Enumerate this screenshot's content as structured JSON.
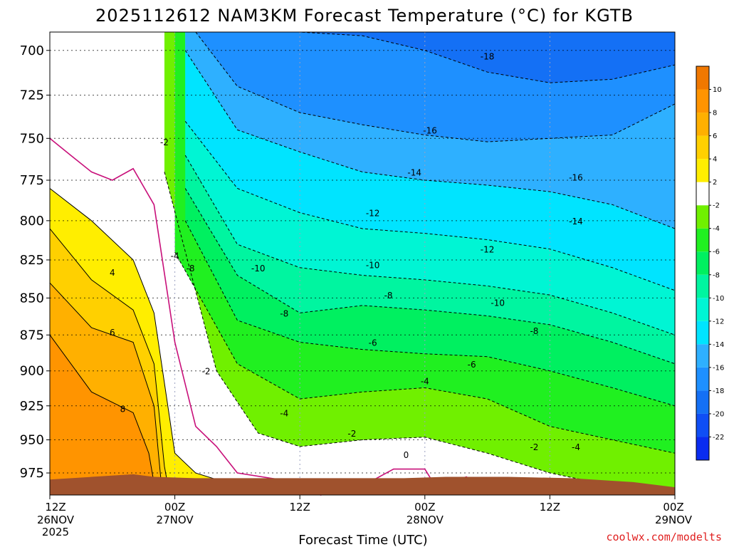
{
  "chart_data": {
    "type": "heatmap",
    "title": "2025112612 NAM3KM Forecast Temperature (°C) for KGTB",
    "xlabel": "Forecast Time (UTC)",
    "ylabel": "",
    "credit": "coolwx.com/modelts",
    "y_axis": {
      "unit": "hPa",
      "ylim": [
        992,
        690
      ],
      "ticks": [
        "700",
        "725",
        "750",
        "775",
        "800",
        "825",
        "850",
        "875",
        "900",
        "925",
        "950",
        "975"
      ]
    },
    "x_axis": {
      "unit": "forecast hours",
      "xlim": [
        0,
        60
      ],
      "ticks": [
        {
          "hour": 0,
          "line1": "12Z",
          "line2": "26NOV",
          "line3": "2025"
        },
        {
          "hour": 12,
          "line1": "00Z",
          "line2": "27NOV",
          "line3": ""
        },
        {
          "hour": 24,
          "line1": "12Z",
          "line2": "",
          "line3": ""
        },
        {
          "hour": 36,
          "line1": "00Z",
          "line2": "28NOV",
          "line3": ""
        },
        {
          "hour": 48,
          "line1": "12Z",
          "line2": "",
          "line3": ""
        },
        {
          "hour": 60,
          "line1": "00Z",
          "line2": "29NOV",
          "line3": ""
        }
      ]
    },
    "colorbar": {
      "levels": [
        -24,
        -22,
        -20,
        -18,
        -16,
        -14,
        -12,
        -10,
        -8,
        -6,
        -4,
        -2,
        2,
        4,
        6,
        8,
        10,
        12
      ],
      "colors": [
        "#0a2cf0",
        "#0f4ef5",
        "#1470f5",
        "#1e90ff",
        "#2eb0ff",
        "#00e4ff",
        "#00f5d4",
        "#00f5a0",
        "#00f060",
        "#20f020",
        "#70f000",
        "#ffffff",
        "#ffee00",
        "#ffd000",
        "#ffb000",
        "#ff9400",
        "#f07800"
      ],
      "tick_labels": [
        "-22",
        "-20",
        "-18",
        "-16",
        "-14",
        "-12",
        "-10",
        "-8",
        "-6",
        "-4",
        "-2",
        "2",
        "4",
        "6",
        "8",
        "10"
      ]
    },
    "bands": [
      {
        "level": -2,
        "color": "#70f000",
        "values": [
          0,
          -0.5,
          -1,
          -1.5,
          -2,
          -2.5,
          -3,
          -3.5,
          -4,
          -4.2,
          -4.4,
          -4.6,
          -4.8,
          -5,
          -5.2,
          -5.4,
          -5.6,
          -5.8,
          -6,
          -6.2,
          -6.4,
          -6.6,
          -6.8,
          -7,
          -7.2,
          -7.4,
          -7.6,
          -7.8,
          -8,
          -8.1,
          -8.2,
          -8.3,
          -8.4,
          -8.5,
          -8.6,
          -8.7,
          -8.8,
          -8.9,
          -9,
          -9.1,
          -9.2,
          -9.3,
          -9.4,
          -9.5,
          -9.6,
          -9.7,
          -9.8,
          -9.9,
          -10,
          -10.1,
          -10.2,
          -10.3,
          -10.4,
          -10.5,
          -10.6,
          -10.7,
          -10.8,
          -10.9,
          -11,
          -11.1,
          -11.2
        ]
      }
    ],
    "series": [
      {
        "name": "-18",
        "level": -18,
        "color": "#1e90ff",
        "x": [
          18,
          24,
          30,
          36,
          42,
          48,
          54,
          60
        ],
        "p": [
          690,
          690,
          692,
          700,
          712,
          718,
          716,
          708
        ]
      },
      {
        "name": "-16",
        "level": -16,
        "color": "#2eb0ff",
        "x": [
          14,
          18,
          24,
          30,
          36,
          42,
          48,
          54,
          60
        ],
        "p": [
          690,
          720,
          735,
          742,
          748,
          752,
          750,
          748,
          730
        ]
      },
      {
        "name": "-14",
        "level": -14,
        "color": "#00e4ff",
        "x": [
          13,
          18,
          24,
          30,
          36,
          42,
          48,
          54,
          60
        ],
        "p": [
          700,
          745,
          758,
          770,
          775,
          778,
          782,
          790,
          805
        ]
      },
      {
        "name": "-12",
        "level": -12,
        "color": "#00f5d4",
        "x": [
          13,
          18,
          24,
          30,
          36,
          42,
          48,
          54,
          60
        ],
        "p": [
          740,
          780,
          795,
          805,
          808,
          812,
          818,
          830,
          845
        ]
      },
      {
        "name": "-10",
        "level": -10,
        "color": "#00f5a0",
        "x": [
          13,
          18,
          24,
          30,
          36,
          42,
          48,
          54,
          60
        ],
        "p": [
          760,
          815,
          830,
          835,
          838,
          842,
          848,
          860,
          875
        ]
      },
      {
        "name": "-8",
        "level": -8,
        "color": "#00f060",
        "x": [
          13,
          18,
          24,
          30,
          36,
          42,
          48,
          54,
          60
        ],
        "p": [
          780,
          835,
          860,
          855,
          858,
          862,
          868,
          880,
          895
        ]
      },
      {
        "name": "-6",
        "level": -6,
        "color": "#20f020",
        "x": [
          13,
          18,
          24,
          30,
          36,
          42,
          48,
          54,
          60
        ],
        "p": [
          800,
          865,
          880,
          885,
          888,
          890,
          900,
          912,
          925
        ]
      },
      {
        "name": "-4",
        "level": -4,
        "color": "#70f000",
        "x": [
          12,
          18,
          24,
          30,
          36,
          42,
          48,
          54,
          60
        ],
        "p": [
          820,
          895,
          920,
          915,
          912,
          920,
          940,
          950,
          960
        ]
      },
      {
        "name": "-2",
        "level": -2,
        "color": "#ffffff",
        "x": [
          11,
          16,
          20,
          24,
          30,
          36,
          42,
          48,
          54,
          60
        ],
        "p": [
          770,
          900,
          945,
          955,
          950,
          948,
          960,
          975,
          985,
          992
        ]
      },
      {
        "name": "2",
        "level": 2,
        "color": "#ffee00",
        "x": [
          0,
          4,
          8,
          10,
          12,
          14,
          16,
          17
        ],
        "p": [
          780,
          800,
          825,
          860,
          960,
          975,
          980,
          992
        ]
      },
      {
        "name": "4",
        "level": 4,
        "color": "#ffd000",
        "x": [
          0,
          4,
          8,
          10,
          11,
          11.5
        ],
        "p": [
          805,
          838,
          858,
          895,
          970,
          992
        ]
      },
      {
        "name": "6",
        "level": 6,
        "color": "#ffb000",
        "x": [
          0,
          4,
          8,
          10,
          10.8
        ],
        "p": [
          840,
          870,
          880,
          925,
          992
        ]
      },
      {
        "name": "8",
        "level": 8,
        "color": "#ff9400",
        "x": [
          0,
          4,
          8,
          9.5,
          10.2
        ],
        "p": [
          875,
          915,
          930,
          960,
          992
        ]
      }
    ],
    "freezing_line": {
      "level": 0,
      "x": [
        0,
        2,
        4,
        6,
        8,
        10,
        12,
        14,
        16,
        18,
        22,
        26,
        30,
        33,
        36,
        37,
        40,
        42
      ],
      "p": [
        750,
        760,
        770,
        775,
        768,
        790,
        880,
        940,
        955,
        975,
        980,
        992,
        985,
        972,
        972,
        985,
        978,
        992
      ]
    },
    "contour_labels": [
      {
        "text": "-18",
        "x": 42,
        "p": 703
      },
      {
        "text": "-16",
        "x": 36.5,
        "p": 745
      },
      {
        "text": "-16",
        "x": 50.5,
        "p": 773
      },
      {
        "text": "-14",
        "x": 35,
        "p": 770
      },
      {
        "text": "-14",
        "x": 50.5,
        "p": 800
      },
      {
        "text": "-12",
        "x": 31,
        "p": 795
      },
      {
        "text": "-12",
        "x": 42,
        "p": 818
      },
      {
        "text": "-10",
        "x": 20,
        "p": 830
      },
      {
        "text": "-10",
        "x": 31,
        "p": 828
      },
      {
        "text": "-10",
        "x": 43,
        "p": 853
      },
      {
        "text": "-8",
        "x": 13.5,
        "p": 830
      },
      {
        "text": "-8",
        "x": 22.5,
        "p": 860
      },
      {
        "text": "-8",
        "x": 32.5,
        "p": 848
      },
      {
        "text": "-8",
        "x": 46.5,
        "p": 872
      },
      {
        "text": "-6",
        "x": 31,
        "p": 880
      },
      {
        "text": "-6",
        "x": 40.5,
        "p": 895
      },
      {
        "text": "-4",
        "x": 12,
        "p": 822
      },
      {
        "text": "-4",
        "x": 22.5,
        "p": 930
      },
      {
        "text": "-4",
        "x": 36,
        "p": 907
      },
      {
        "text": "-4",
        "x": 50.5,
        "p": 955
      },
      {
        "text": "-2",
        "x": 11,
        "p": 752
      },
      {
        "text": "-2",
        "x": 15,
        "p": 900
      },
      {
        "text": "-2",
        "x": 29,
        "p": 945
      },
      {
        "text": "-2",
        "x": 46.5,
        "p": 955
      },
      {
        "text": "0",
        "x": 34.2,
        "p": 961
      },
      {
        "text": "4",
        "x": 6,
        "p": 833
      },
      {
        "text": "6",
        "x": 6,
        "p": 873
      },
      {
        "text": "8",
        "x": 7,
        "p": 927
      }
    ],
    "terrain": {
      "color": "#a0522d",
      "x": [
        0,
        4,
        8,
        10,
        14,
        20,
        28,
        34,
        38,
        44,
        50,
        56,
        60
      ],
      "p": [
        980,
        978,
        976,
        978,
        979,
        979,
        979,
        979,
        978,
        978,
        979,
        982,
        986
      ]
    }
  }
}
